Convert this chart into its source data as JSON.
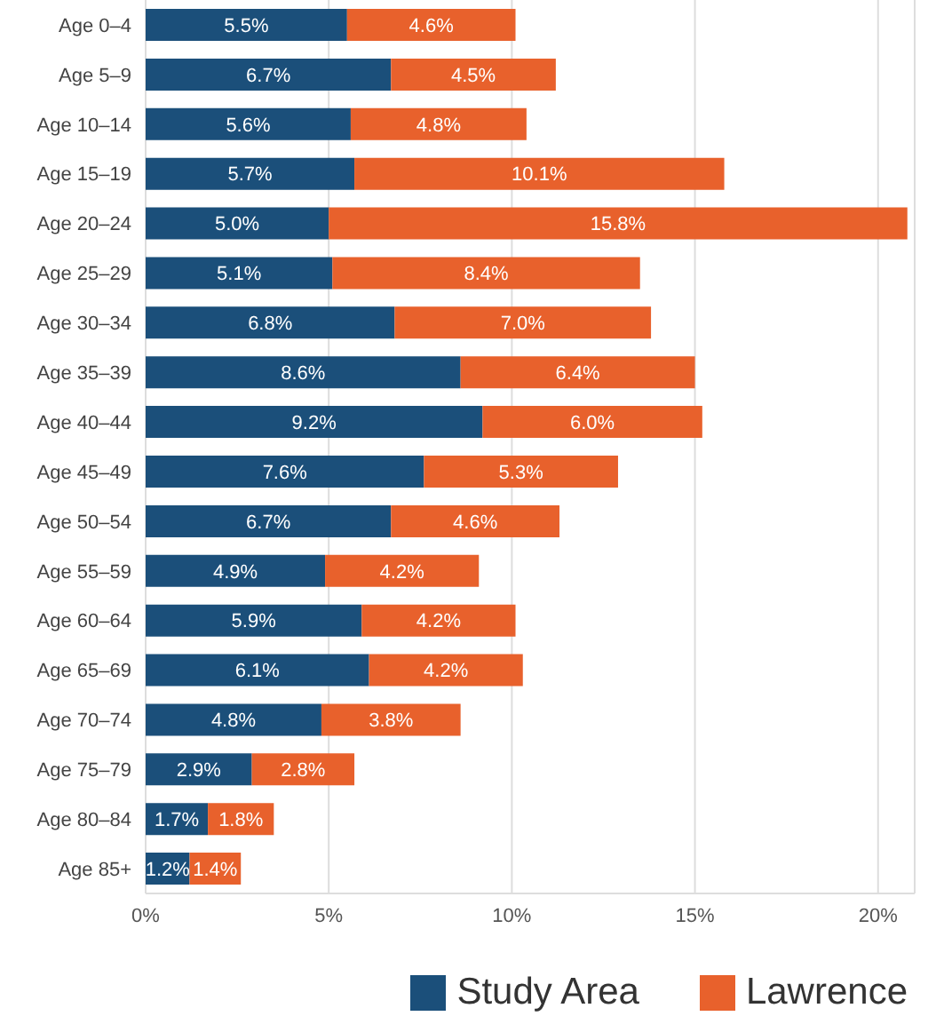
{
  "chart_data": {
    "type": "bar",
    "orientation": "horizontal",
    "stacked": true,
    "grid": "x",
    "legend": "bottom",
    "categories": [
      "Age 0–4",
      "Age 5–9",
      "Age 10–14",
      "Age 15–19",
      "Age 20–24",
      "Age 25–29",
      "Age 30–34",
      "Age 35–39",
      "Age 40–44",
      "Age 45–49",
      "Age 50–54",
      "Age 55–59",
      "Age 60–64",
      "Age 65–69",
      "Age 70–74",
      "Age 75–79",
      "Age 80–84",
      "Age 85+"
    ],
    "xlim": [
      0,
      21
    ],
    "xticks": [
      {
        "value": 0,
        "label": "0%"
      },
      {
        "value": 5,
        "label": "5%"
      },
      {
        "value": 10,
        "label": "10%"
      },
      {
        "value": 15,
        "label": "15%"
      },
      {
        "value": 20,
        "label": "20%"
      }
    ],
    "series": [
      {
        "name": "Study Area",
        "color": "#1b4f7a",
        "values": [
          5.5,
          6.7,
          5.6,
          5.7,
          5.0,
          5.1,
          6.8,
          8.6,
          9.2,
          7.6,
          6.7,
          4.9,
          5.9,
          6.1,
          4.8,
          2.9,
          1.7,
          1.2
        ],
        "value_labels": [
          "5.5%",
          "6.7%",
          "5.6%",
          "5.7%",
          "5.0%",
          "5.1%",
          "6.8%",
          "8.6%",
          "9.2%",
          "7.6%",
          "6.7%",
          "4.9%",
          "5.9%",
          "6.1%",
          "4.8%",
          "2.9%",
          "1.7%",
          "1.2%"
        ]
      },
      {
        "name": "Lawrence",
        "color": "#e8612c",
        "values": [
          4.6,
          4.5,
          4.8,
          10.1,
          15.8,
          8.4,
          7.0,
          6.4,
          6.0,
          5.3,
          4.6,
          4.2,
          4.2,
          4.2,
          3.8,
          2.8,
          1.8,
          1.4
        ],
        "value_labels": [
          "4.6%",
          "4.5%",
          "4.8%",
          "10.1%",
          "15.8%",
          "8.4%",
          "7.0%",
          "6.4%",
          "6.0%",
          "5.3%",
          "4.6%",
          "4.2%",
          "4.2%",
          "4.2%",
          "3.8%",
          "2.8%",
          "1.8%",
          "1.4%"
        ]
      }
    ]
  }
}
